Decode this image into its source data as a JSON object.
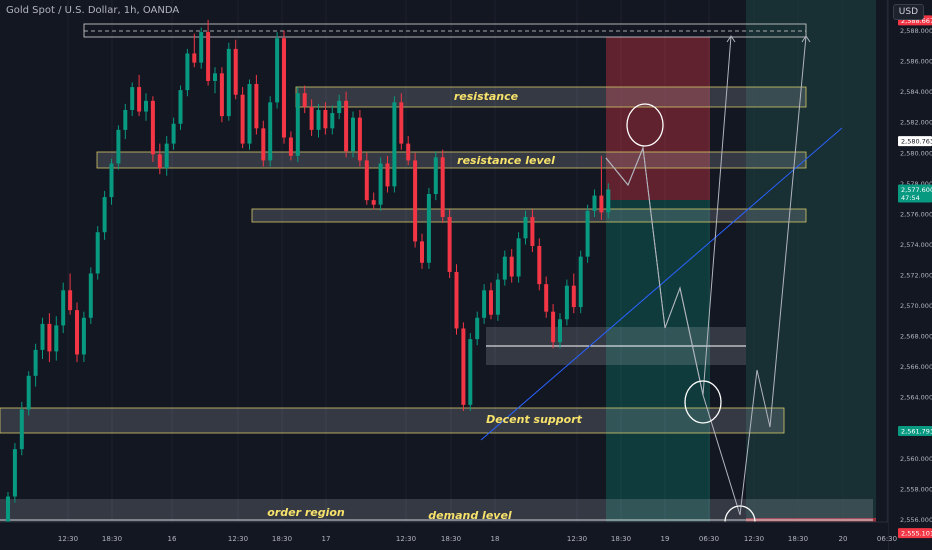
{
  "header": {
    "title": "Gold Spot / U.S. Dollar, 1h, OANDA",
    "currency": "USD"
  },
  "chart_data": {
    "type": "candlestick",
    "ylim": [
      2554.0,
      2590.0
    ],
    "y_ticks": [
      "2,556.000",
      "2,558.000",
      "2,560.000",
      "2,562.000",
      "2,564.000",
      "2,566.000",
      "2,568.000",
      "2,570.000",
      "2,572.000",
      "2,574.000",
      "2,576.000",
      "2,578.000",
      "2,580.000",
      "2,582.000",
      "2,584.000",
      "2,586.000",
      "2,588.000"
    ],
    "x_ticks": [
      "12:30",
      "18:30",
      "16",
      "12:30",
      "18:30",
      "17",
      "12:30",
      "18:30",
      "18",
      "12:30",
      "18:30",
      "19",
      "06:30",
      "12:30",
      "18:30",
      "20",
      "06:30"
    ],
    "price_tags": [
      {
        "label": "2,588.667",
        "color": "#f23645"
      },
      {
        "label": "2,580.763",
        "color": "#ffffff"
      },
      {
        "label": "2,577.600",
        "sub": "47:54",
        "color": "#089981"
      },
      {
        "label": "2,561.793",
        "color": "#089981"
      },
      {
        "label": "2,555.101",
        "color": "#f23645"
      }
    ],
    "zones": [
      {
        "label": "resistance"
      },
      {
        "label": "resistance level"
      },
      {
        "label": "Decent support"
      },
      {
        "label": "order region"
      },
      {
        "label": "demand level"
      }
    ],
    "candles": [
      [
        2555.0,
        2557.8,
        2554.6,
        2557.5
      ],
      [
        2557.5,
        2561.0,
        2557.1,
        2560.6
      ],
      [
        2560.6,
        2563.7,
        2560.2,
        2563.2
      ],
      [
        2563.2,
        2565.7,
        2562.8,
        2565.4
      ],
      [
        2565.4,
        2567.5,
        2564.7,
        2567.1
      ],
      [
        2567.1,
        2569.2,
        2566.5,
        2568.8
      ],
      [
        2568.8,
        2569.5,
        2566.3,
        2567.0
      ],
      [
        2567.0,
        2569.3,
        2566.4,
        2568.7
      ],
      [
        2568.7,
        2571.5,
        2568.2,
        2571.0
      ],
      [
        2571.0,
        2572.1,
        2569.4,
        2569.7
      ],
      [
        2569.7,
        2570.2,
        2566.3,
        2566.8
      ],
      [
        2566.8,
        2569.6,
        2566.3,
        2569.2
      ],
      [
        2569.2,
        2572.5,
        2568.8,
        2572.1
      ],
      [
        2572.1,
        2575.2,
        2571.7,
        2574.8
      ],
      [
        2574.8,
        2577.5,
        2574.3,
        2577.1
      ],
      [
        2577.1,
        2579.6,
        2576.6,
        2579.3
      ],
      [
        2579.3,
        2581.8,
        2578.9,
        2581.5
      ],
      [
        2581.5,
        2583.2,
        2580.9,
        2582.8
      ],
      [
        2582.8,
        2584.6,
        2582.4,
        2584.3
      ],
      [
        2584.3,
        2585.1,
        2582.4,
        2582.7
      ],
      [
        2582.7,
        2583.9,
        2582.1,
        2583.4
      ],
      [
        2583.4,
        2583.7,
        2579.4,
        2579.9
      ],
      [
        2579.9,
        2580.6,
        2578.6,
        2579.0
      ],
      [
        2579.0,
        2581.1,
        2578.5,
        2580.6
      ],
      [
        2580.6,
        2582.3,
        2580.2,
        2581.9
      ],
      [
        2581.9,
        2584.4,
        2581.5,
        2584.1
      ],
      [
        2584.1,
        2586.8,
        2583.7,
        2586.5
      ],
      [
        2586.5,
        2587.8,
        2585.6,
        2585.9
      ],
      [
        2585.9,
        2588.2,
        2585.5,
        2587.9
      ],
      [
        2587.9,
        2588.7,
        2584.4,
        2584.7
      ],
      [
        2584.7,
        2585.6,
        2583.9,
        2585.2
      ],
      [
        2585.2,
        2585.6,
        2582.0,
        2582.4
      ],
      [
        2582.4,
        2587.2,
        2582.1,
        2586.8
      ],
      [
        2586.8,
        2587.4,
        2583.5,
        2583.8
      ],
      [
        2583.8,
        2584.3,
        2580.3,
        2580.6
      ],
      [
        2580.6,
        2584.8,
        2580.2,
        2584.5
      ],
      [
        2584.5,
        2585.1,
        2581.2,
        2581.6
      ],
      [
        2581.6,
        2582.1,
        2579.1,
        2579.5
      ],
      [
        2579.5,
        2583.7,
        2579.1,
        2583.3
      ],
      [
        2583.3,
        2587.9,
        2582.9,
        2587.5
      ],
      [
        2587.5,
        2588.0,
        2580.6,
        2581.0
      ],
      [
        2581.0,
        2581.4,
        2579.5,
        2579.8
      ],
      [
        2579.8,
        2584.3,
        2579.4,
        2583.9
      ],
      [
        2583.9,
        2584.4,
        2582.6,
        2583.0
      ],
      [
        2583.0,
        2583.5,
        2581.1,
        2581.5
      ],
      [
        2581.5,
        2583.2,
        2581.0,
        2582.8
      ],
      [
        2582.8,
        2583.3,
        2581.2,
        2581.6
      ],
      [
        2581.6,
        2583.1,
        2581.2,
        2582.6
      ],
      [
        2582.6,
        2583.8,
        2582.2,
        2583.4
      ],
      [
        2583.4,
        2584.0,
        2579.7,
        2580.1
      ],
      [
        2580.1,
        2582.7,
        2579.7,
        2582.3
      ],
      [
        2582.3,
        2582.8,
        2579.1,
        2579.5
      ],
      [
        2579.5,
        2580.0,
        2576.6,
        2576.9
      ],
      [
        2576.9,
        2577.4,
        2576.3,
        2576.6
      ],
      [
        2576.6,
        2579.7,
        2576.2,
        2579.3
      ],
      [
        2579.3,
        2579.8,
        2577.4,
        2577.8
      ],
      [
        2577.8,
        2583.7,
        2577.4,
        2583.3
      ],
      [
        2583.3,
        2583.9,
        2580.2,
        2580.6
      ],
      [
        2580.6,
        2581.1,
        2579.2,
        2579.5
      ],
      [
        2579.5,
        2580.0,
        2573.8,
        2574.2
      ],
      [
        2574.2,
        2574.7,
        2572.4,
        2572.8
      ],
      [
        2572.8,
        2577.7,
        2572.4,
        2577.3
      ],
      [
        2577.3,
        2580.1,
        2576.9,
        2579.7
      ],
      [
        2579.7,
        2580.2,
        2575.4,
        2575.8
      ],
      [
        2575.8,
        2576.3,
        2571.8,
        2572.2
      ],
      [
        2572.2,
        2572.7,
        2568.1,
        2568.5
      ],
      [
        2568.5,
        2568.9,
        2563.1,
        2563.5
      ],
      [
        2563.5,
        2568.2,
        2563.1,
        2567.8
      ],
      [
        2567.8,
        2569.6,
        2567.4,
        2569.2
      ],
      [
        2569.2,
        2571.4,
        2568.8,
        2571.0
      ],
      [
        2571.0,
        2571.5,
        2569.1,
        2569.4
      ],
      [
        2569.4,
        2572.1,
        2569.0,
        2571.7
      ],
      [
        2571.7,
        2573.6,
        2571.3,
        2573.2
      ],
      [
        2573.2,
        2573.7,
        2571.5,
        2571.9
      ],
      [
        2571.9,
        2574.8,
        2571.5,
        2574.4
      ],
      [
        2574.4,
        2576.2,
        2574.0,
        2575.8
      ],
      [
        2575.8,
        2576.3,
        2573.5,
        2573.9
      ],
      [
        2573.9,
        2574.4,
        2571.0,
        2571.4
      ],
      [
        2571.4,
        2571.9,
        2569.2,
        2569.6
      ],
      [
        2569.6,
        2570.1,
        2567.2,
        2567.6
      ],
      [
        2567.6,
        2569.5,
        2567.2,
        2569.1
      ],
      [
        2569.1,
        2571.7,
        2568.7,
        2571.3
      ],
      [
        2571.3,
        2572.1,
        2569.5,
        2569.9
      ],
      [
        2569.9,
        2573.6,
        2569.5,
        2573.2
      ],
      [
        2573.2,
        2576.6,
        2572.8,
        2576.2
      ],
      [
        2576.2,
        2577.6,
        2575.8,
        2577.2
      ],
      [
        2577.2,
        2579.8,
        2575.6,
        2576.1
      ],
      [
        2576.1,
        2578.0,
        2575.7,
        2577.6
      ]
    ]
  }
}
